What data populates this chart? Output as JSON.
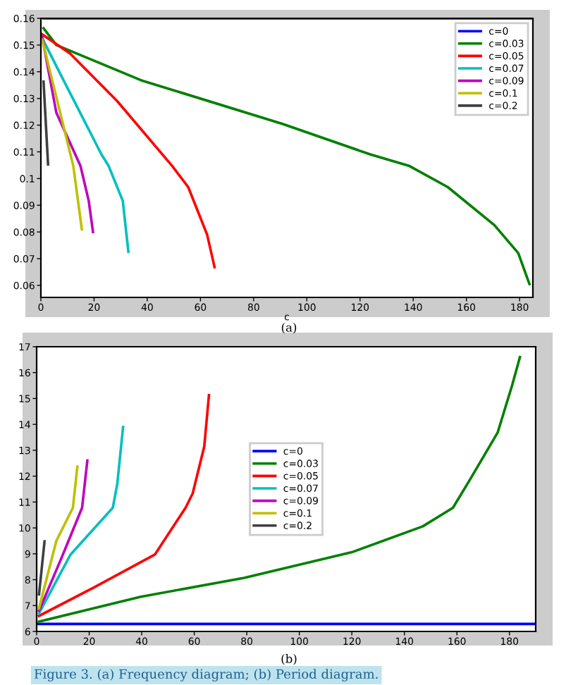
{
  "chart_data": [
    {
      "type": "line",
      "xlabel": "c",
      "xlim": [
        0,
        185
      ],
      "ylim": [
        0.0555,
        0.16
      ],
      "xticks": [
        0,
        20,
        40,
        60,
        80,
        100,
        120,
        140,
        160,
        180
      ],
      "yticks": [
        0.06,
        0.07,
        0.08,
        0.09,
        0.1,
        0.11,
        0.12,
        0.13,
        0.14,
        0.15,
        0.16
      ],
      "grid": false,
      "legend": "upper right",
      "annotations": [
        "(a)"
      ],
      "series": [
        {
          "name": "c=0",
          "color": "#0000ff",
          "x": [
            1,
            185
          ],
          "values": [
            0.16,
            0.16
          ]
        },
        {
          "name": "c=0.03",
          "color": "#008000",
          "x": [
            1,
            5.8,
            37.7,
            90.8,
            124,
            138.6,
            153,
            170.5,
            179.5,
            183.7
          ],
          "values": [
            0.1563,
            0.15,
            0.1368,
            0.1205,
            0.109,
            0.1047,
            0.0968,
            0.0826,
            0.0721,
            0.0605
          ]
        },
        {
          "name": "c=0.05",
          "color": "#ff0000",
          "x": [
            0.5,
            11,
            28.7,
            49.4,
            55.4,
            62.5,
            65.3
          ],
          "values": [
            0.154,
            0.1468,
            0.129,
            0.1047,
            0.0968,
            0.079,
            0.0668
          ]
        },
        {
          "name": "c=0.07",
          "color": "#00bfbf",
          "x": [
            0.5,
            7.4,
            22.8,
            25.5,
            30.8,
            32.9
          ],
          "values": [
            0.1526,
            0.139,
            0.109,
            0.1047,
            0.0916,
            0.0726
          ]
        },
        {
          "name": "c=0.09",
          "color": "#bf00bf",
          "x": [
            0.5,
            5.8,
            14.9,
            18,
            19.6
          ],
          "values": [
            0.153,
            0.1247,
            0.1047,
            0.0916,
            0.08
          ]
        },
        {
          "name": "c=0.1",
          "color": "#bfbf00",
          "x": [
            0.5,
            12.2,
            15.4
          ],
          "values": [
            0.152,
            0.1047,
            0.081
          ]
        },
        {
          "name": "c=0.2",
          "color": "#3f3f3f",
          "x": [
            1,
            2.7
          ],
          "values": [
            0.1363,
            0.1053
          ]
        }
      ]
    },
    {
      "type": "line",
      "xlim": [
        0,
        190
      ],
      "ylim": [
        6,
        17
      ],
      "xticks": [
        0,
        20,
        40,
        60,
        80,
        100,
        120,
        140,
        160,
        180
      ],
      "yticks": [
        6,
        7,
        8,
        9,
        10,
        11,
        12,
        13,
        14,
        15,
        16,
        17
      ],
      "grid": false,
      "legend": "center",
      "annotations": [
        "(b)",
        "Figure 3. (a) Frequency diagram; (b) Period diagram."
      ],
      "series": [
        {
          "name": "c=0",
          "color": "#0000ff",
          "x": [
            0.5,
            190
          ],
          "values": [
            6.29,
            6.29
          ]
        },
        {
          "name": "c=0.03",
          "color": "#008000",
          "x": [
            0.9,
            39.7,
            79,
            120,
            147,
            158.5,
            165,
            175.5,
            181,
            184
          ],
          "values": [
            6.38,
            7.34,
            8.07,
            9.06,
            10.06,
            10.78,
            11.87,
            13.68,
            15.5,
            16.6
          ]
        },
        {
          "name": "c=0.05",
          "color": "#ff0000",
          "x": [
            0.9,
            21.8,
            45,
            56.7,
            59.4,
            63.8,
            65.6
          ],
          "values": [
            6.6,
            7.7,
            8.97,
            10.78,
            11.33,
            13.14,
            15.13
          ]
        },
        {
          "name": "c=0.07",
          "color": "#00bfbf",
          "x": [
            0.9,
            12.9,
            29,
            30.7,
            32.9
          ],
          "values": [
            6.7,
            8.97,
            10.78,
            11.7,
            13.9
          ]
        },
        {
          "name": "c=0.09",
          "color": "#bf00bf",
          "x": [
            0.9,
            9.3,
            17.3,
            19.3
          ],
          "values": [
            6.8,
            8.8,
            10.78,
            12.6
          ]
        },
        {
          "name": "c=0.1",
          "color": "#bfbf00",
          "x": [
            0.9,
            7.5,
            13.8,
            15.5
          ],
          "values": [
            6.9,
            9.5,
            10.78,
            12.37
          ]
        },
        {
          "name": "c=0.2",
          "color": "#3f3f3f",
          "x": [
            0.9,
            3
          ],
          "values": [
            7.43,
            9.48
          ]
        }
      ]
    }
  ]
}
